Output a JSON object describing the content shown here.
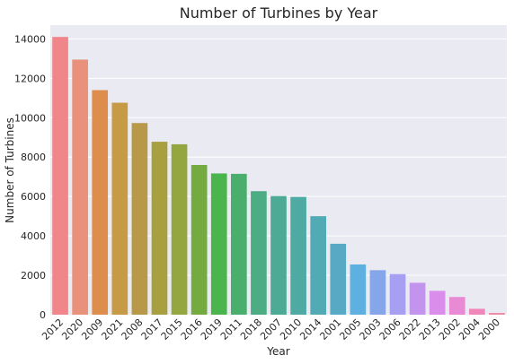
{
  "chart_data": {
    "type": "bar",
    "title": "Number of Turbines by Year",
    "xlabel": "Year",
    "ylabel": "Number of Turbines",
    "categories": [
      "2012",
      "2020",
      "2009",
      "2021",
      "2008",
      "2017",
      "2015",
      "2016",
      "2019",
      "2011",
      "2018",
      "2007",
      "2010",
      "2014",
      "2001",
      "2005",
      "2003",
      "2006",
      "2022",
      "2013",
      "2002",
      "2004",
      "2000"
    ],
    "values": [
      14100,
      12950,
      11400,
      10760,
      9730,
      8780,
      8650,
      7600,
      7170,
      7150,
      6270,
      6020,
      5980,
      5000,
      3600,
      2550,
      2260,
      2060,
      1620,
      1210,
      900,
      300,
      90
    ],
    "ylim": [
      0,
      14700
    ],
    "yticks": [
      0,
      2000,
      4000,
      6000,
      8000,
      10000,
      12000,
      14000
    ],
    "grid": true,
    "legend": "none",
    "background_color": "#eaeaf2",
    "colors": [
      "#f0868a",
      "#e8917b",
      "#dd8e4d",
      "#c79a46",
      "#b8994a",
      "#a89f3f",
      "#94a63f",
      "#74ab40",
      "#4ab44d",
      "#4aaf6c",
      "#4cad84",
      "#4daa95",
      "#4faaa3",
      "#52aab4",
      "#58aac4",
      "#5db0e0",
      "#86a6ea",
      "#a7a0f2",
      "#c394ed",
      "#db8deb",
      "#e98ad5",
      "#ef87bb",
      "#f08aa4"
    ]
  }
}
